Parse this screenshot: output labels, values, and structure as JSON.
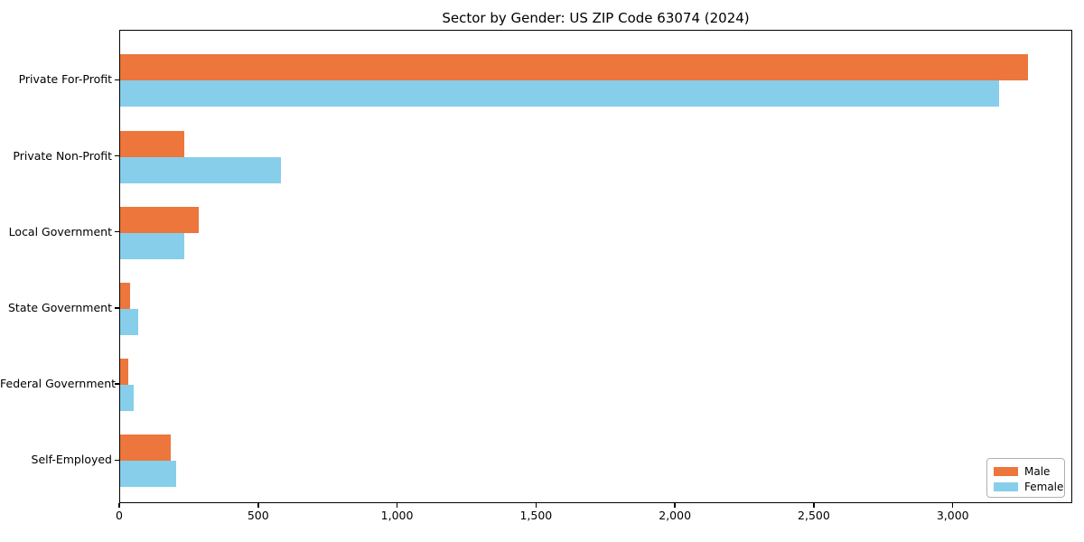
{
  "chart_data": {
    "type": "bar",
    "orientation": "horizontal",
    "title": "Sector by Gender: US ZIP Code 63074 (2024)",
    "categories": [
      "Private For-Profit",
      "Private Non-Profit",
      "Local Government",
      "State Government",
      "Federal Government",
      "Self-Employed"
    ],
    "series": [
      {
        "name": "Male",
        "color": "#EC763C",
        "values": [
          3267,
          231,
          284,
          37,
          29,
          183
        ]
      },
      {
        "name": "Female",
        "color": "#87CEEB",
        "values": [
          3162,
          580,
          231,
          66,
          49,
          203
        ]
      }
    ],
    "xlabel": "",
    "ylabel": "",
    "xlim": [
      0,
      3430
    ],
    "xticks": [
      0,
      500,
      1000,
      1500,
      2000,
      2500,
      3000
    ],
    "xtick_labels": [
      "0",
      "500",
      "1,000",
      "1,500",
      "2,000",
      "2,500",
      "3,000"
    ],
    "grid": false,
    "legend": {
      "position": "lower right"
    }
  }
}
